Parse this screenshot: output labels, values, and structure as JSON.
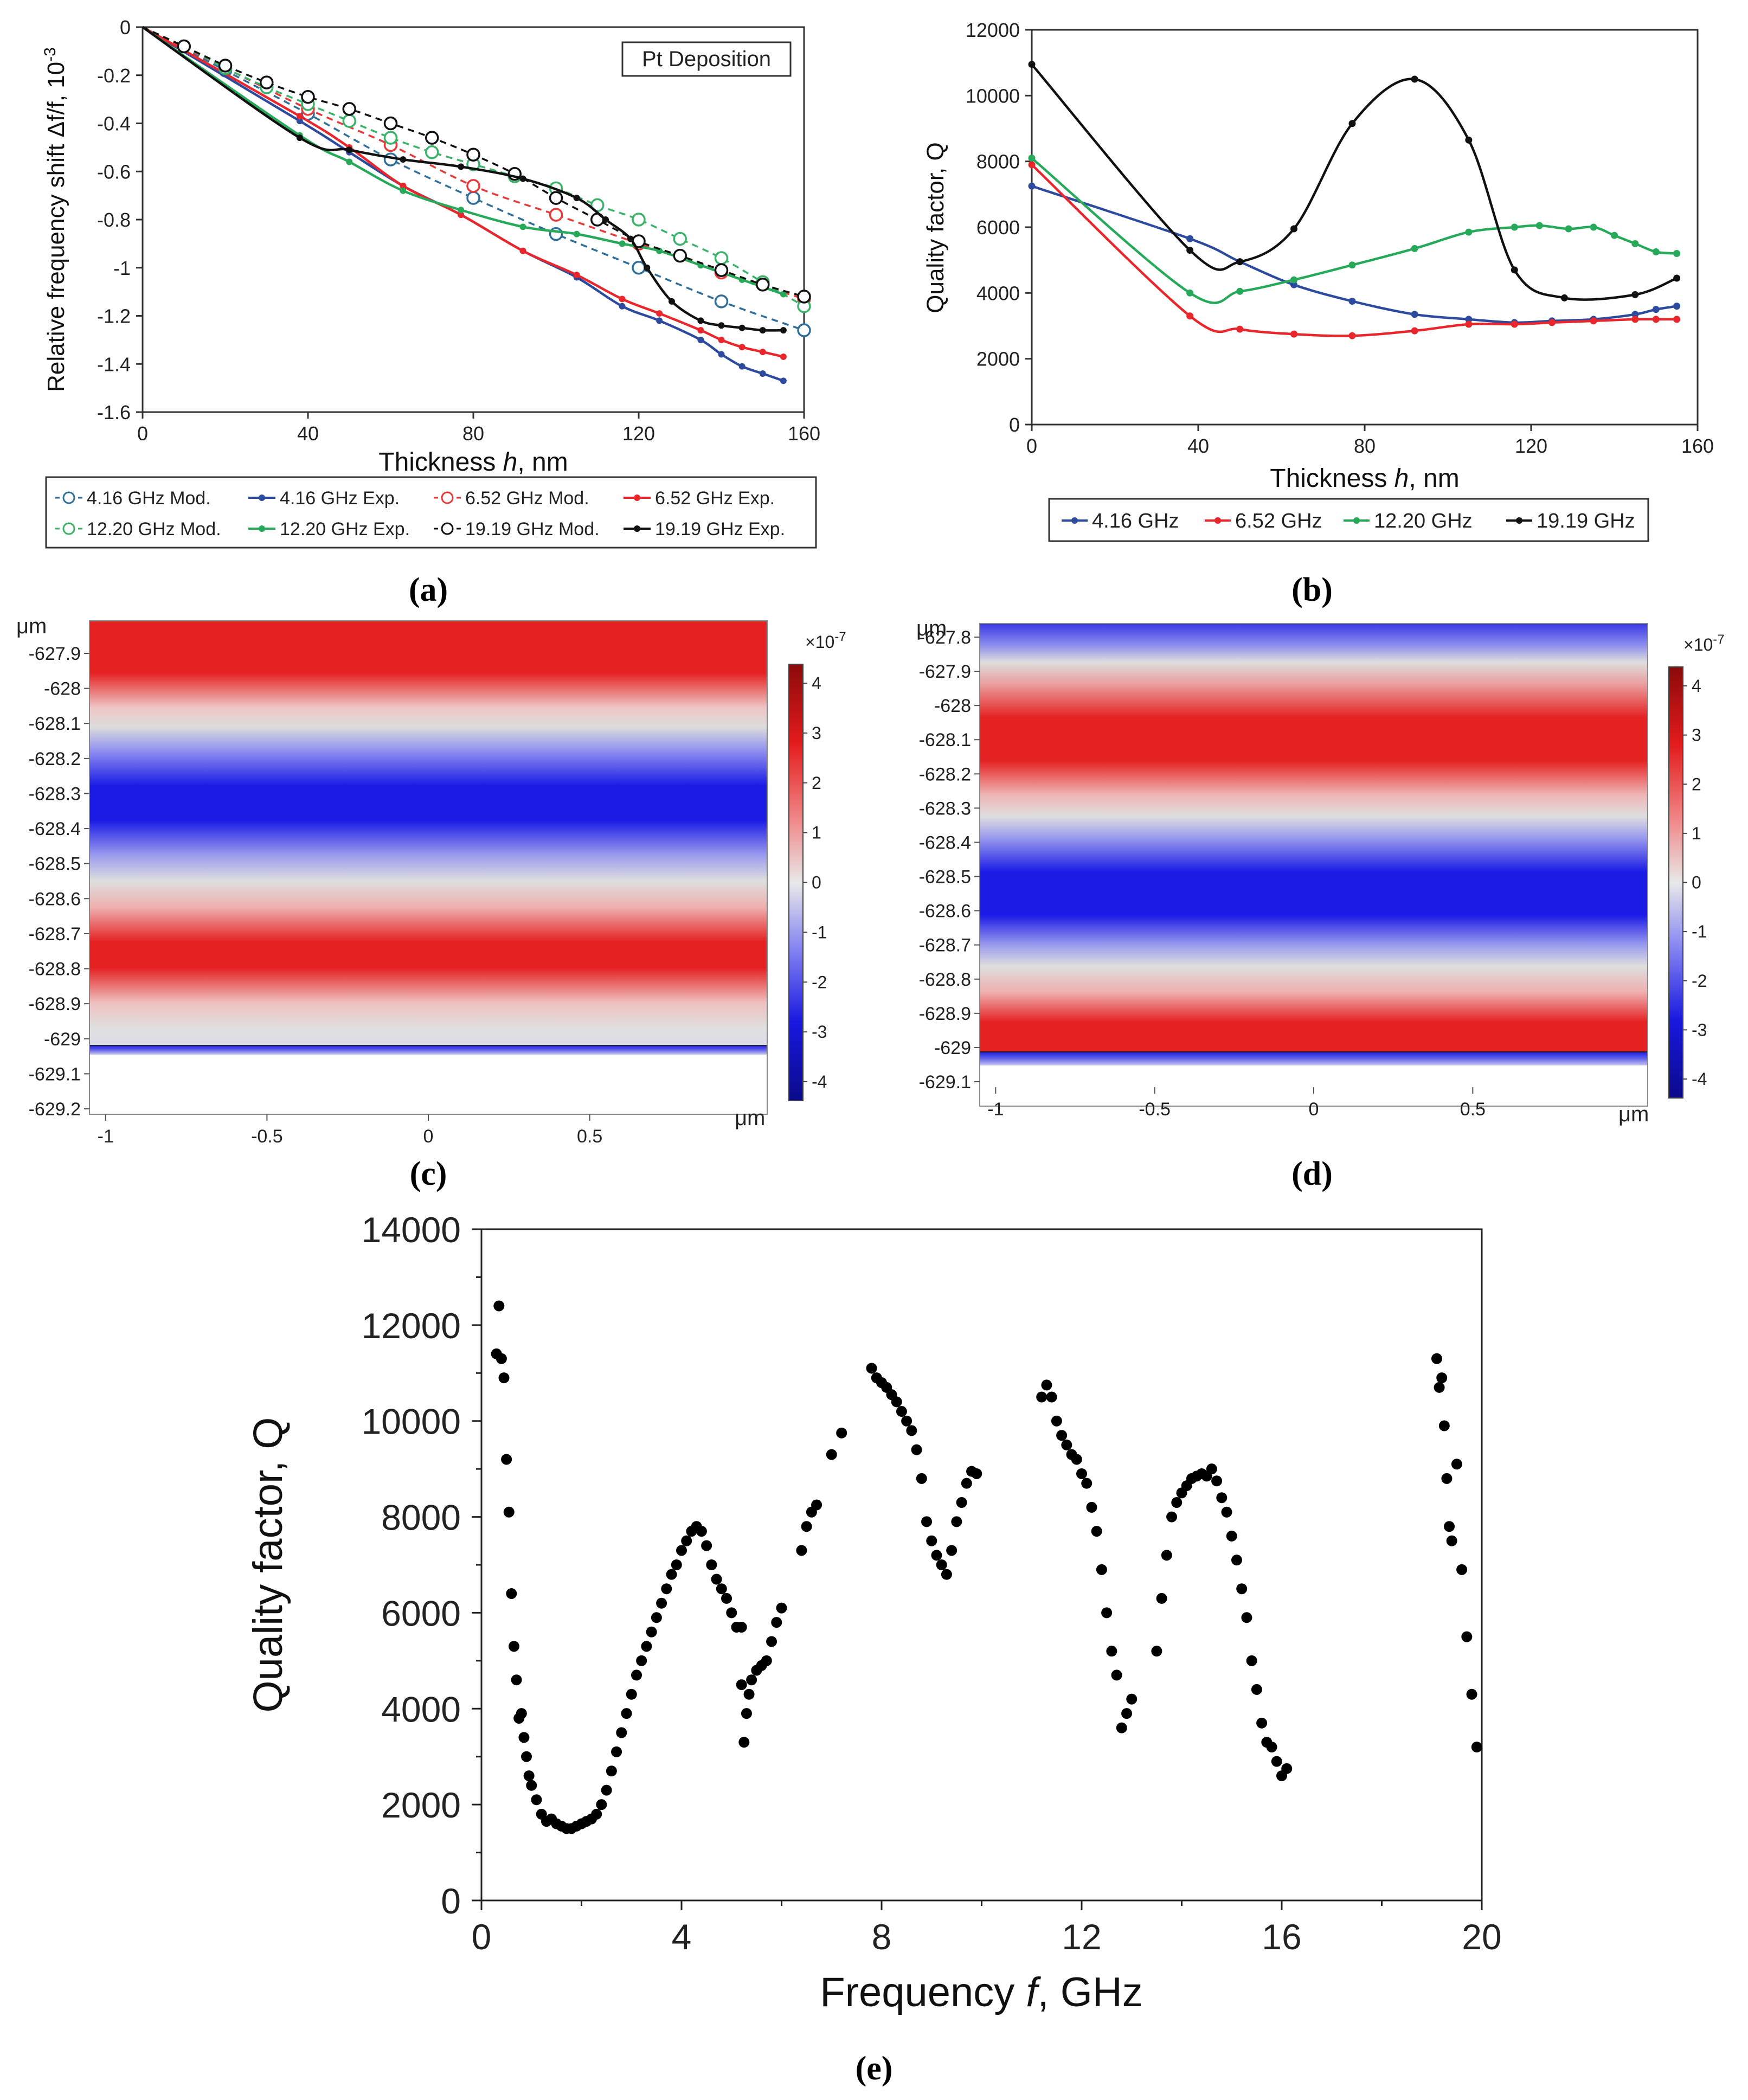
{
  "chart_data": [
    {
      "panel": "(a)",
      "type": "line",
      "title": "Pt Deposition",
      "xlabel": "Thickness",
      "xlabel_var": "h",
      "xlabel_unit": ", nm",
      "ylabel": "Relative frequency shift Δf/f, 10",
      "ylabel_exp": "-3",
      "xlim": [
        0,
        160
      ],
      "ylim": [
        -1.6,
        0
      ],
      "xticks": [
        "0",
        "40",
        "80",
        "120",
        "160"
      ],
      "yticks": [
        "0",
        "-0.2",
        "-0.4",
        "-0.6",
        "-0.8",
        "-1",
        "-1.2",
        "-1.4",
        "-1.6"
      ],
      "legend": [
        {
          "name": "4.16 GHz Mod.",
          "color": "#2f6f9a",
          "style": "mod"
        },
        {
          "name": "4.16 GHz Exp.",
          "color": "#2c4b9e",
          "style": "exp"
        },
        {
          "name": "6.52 GHz Mod.",
          "color": "#e8393a",
          "style": "mod"
        },
        {
          "name": "6.52 GHz Exp.",
          "color": "#e8262b",
          "style": "exp"
        },
        {
          "name": "12.20 GHz Mod.",
          "color": "#3bb36a",
          "style": "mod"
        },
        {
          "name": "12.20 GHz Exp.",
          "color": "#27a95a",
          "style": "exp"
        },
        {
          "name": "19.19 GHz Mod.",
          "color": "#111111",
          "style": "mod"
        },
        {
          "name": "19.19 GHz Exp.",
          "color": "#111111",
          "style": "exp"
        }
      ],
      "series": [
        {
          "name": "4.16 GHz Mod.",
          "color": "#2f6f9a",
          "style": "mod",
          "x": [
            0,
            20,
            40,
            60,
            80,
            100,
            120,
            140,
            160
          ],
          "y": [
            0,
            -0.18,
            -0.36,
            -0.55,
            -0.71,
            -0.86,
            -1.0,
            -1.14,
            -1.26
          ]
        },
        {
          "name": "4.16 GHz Exp.",
          "color": "#2c4b9e",
          "style": "exp",
          "x": [
            0,
            38,
            50,
            63,
            77,
            92,
            105,
            116,
            125,
            135,
            140,
            145,
            150,
            155
          ],
          "y": [
            0,
            -0.39,
            -0.52,
            -0.66,
            -0.78,
            -0.93,
            -1.04,
            -1.16,
            -1.22,
            -1.3,
            -1.36,
            -1.41,
            -1.44,
            -1.47
          ]
        },
        {
          "name": "6.52 GHz Mod.",
          "color": "#e8393a",
          "style": "mod",
          "x": [
            0,
            20,
            40,
            60,
            80,
            100,
            120,
            140,
            160
          ],
          "y": [
            0,
            -0.17,
            -0.34,
            -0.49,
            -0.66,
            -0.78,
            -0.9,
            -1.02,
            -1.13
          ]
        },
        {
          "name": "6.52 GHz Exp.",
          "color": "#e8262b",
          "style": "exp",
          "x": [
            0,
            38,
            50,
            63,
            77,
            92,
            105,
            116,
            125,
            135,
            140,
            145,
            150,
            155
          ],
          "y": [
            0,
            -0.37,
            -0.5,
            -0.66,
            -0.78,
            -0.93,
            -1.03,
            -1.13,
            -1.19,
            -1.26,
            -1.3,
            -1.33,
            -1.35,
            -1.37
          ]
        },
        {
          "name": "12.20 GHz Mod.",
          "color": "#3bb36a",
          "style": "mod",
          "x": [
            0,
            10,
            20,
            30,
            40,
            50,
            60,
            70,
            80,
            90,
            100,
            110,
            120,
            130,
            140,
            150,
            160
          ],
          "y": [
            0,
            -0.08,
            -0.17,
            -0.25,
            -0.32,
            -0.39,
            -0.46,
            -0.52,
            -0.57,
            -0.62,
            -0.67,
            -0.74,
            -0.8,
            -0.88,
            -0.96,
            -1.06,
            -1.16
          ]
        },
        {
          "name": "12.20 GHz Exp.",
          "color": "#27a95a",
          "style": "exp",
          "x": [
            0,
            38,
            50,
            63,
            77,
            92,
            105,
            116,
            125,
            135,
            140,
            145,
            150,
            155
          ],
          "y": [
            0,
            -0.45,
            -0.56,
            -0.68,
            -0.76,
            -0.83,
            -0.86,
            -0.9,
            -0.93,
            -0.99,
            -1.02,
            -1.05,
            -1.08,
            -1.11
          ]
        },
        {
          "name": "19.19 GHz Mod.",
          "color": "#111111",
          "style": "mod",
          "x": [
            0,
            10,
            20,
            30,
            40,
            50,
            60,
            70,
            80,
            90,
            100,
            110,
            120,
            130,
            140,
            150,
            160
          ],
          "y": [
            0,
            -0.08,
            -0.16,
            -0.23,
            -0.29,
            -0.34,
            -0.4,
            -0.46,
            -0.53,
            -0.61,
            -0.71,
            -0.8,
            -0.89,
            -0.95,
            -1.01,
            -1.07,
            -1.12
          ]
        },
        {
          "name": "19.19 GHz Exp.",
          "color": "#111111",
          "style": "exp",
          "x": [
            0,
            38,
            50,
            63,
            77,
            92,
            105,
            112,
            118,
            122,
            128,
            135,
            140,
            145,
            150,
            155
          ],
          "y": [
            0,
            -0.46,
            -0.51,
            -0.55,
            -0.58,
            -0.63,
            -0.71,
            -0.8,
            -0.88,
            -1.0,
            -1.14,
            -1.22,
            -1.24,
            -1.25,
            -1.26,
            -1.26
          ]
        }
      ]
    },
    {
      "panel": "(b)",
      "type": "line",
      "xlabel": "Thickness",
      "xlabel_var": "h",
      "xlabel_unit": ", nm",
      "ylabel": "Quality factor,  Q",
      "xlim": [
        0,
        160
      ],
      "ylim": [
        0,
        12000
      ],
      "xticks": [
        "0",
        "40",
        "80",
        "120",
        "160"
      ],
      "yticks": [
        "0",
        "2000",
        "4000",
        "6000",
        "8000",
        "10000",
        "12000"
      ],
      "series": [
        {
          "name": "4.16 GHz",
          "color": "#2c4b9e",
          "x": [
            0,
            38,
            50,
            63,
            77,
            92,
            105,
            116,
            125,
            135,
            145,
            150,
            155
          ],
          "y": [
            7250,
            5650,
            4950,
            4250,
            3750,
            3350,
            3200,
            3100,
            3150,
            3200,
            3350,
            3500,
            3600
          ]
        },
        {
          "name": "6.52 GHz",
          "color": "#e8262b",
          "x": [
            0,
            38,
            50,
            63,
            77,
            92,
            105,
            116,
            125,
            135,
            145,
            150,
            155
          ],
          "y": [
            7900,
            3300,
            2900,
            2750,
            2700,
            2850,
            3050,
            3050,
            3100,
            3150,
            3200,
            3200,
            3200
          ]
        },
        {
          "name": "12.20 GHz",
          "color": "#27a95a",
          "x": [
            0,
            38,
            50,
            63,
            77,
            92,
            105,
            116,
            122,
            129,
            135,
            140,
            145,
            150,
            155
          ],
          "y": [
            8100,
            4000,
            4050,
            4400,
            4850,
            5350,
            5850,
            6000,
            6050,
            5950,
            6000,
            5750,
            5500,
            5250,
            5200
          ]
        },
        {
          "name": "19.19 GHz",
          "color": "#111111",
          "x": [
            0,
            38,
            50,
            63,
            77,
            92,
            105,
            116,
            128,
            145,
            155
          ],
          "y": [
            10950,
            5300,
            4950,
            5950,
            9150,
            10500,
            8650,
            4700,
            3850,
            3950,
            4450
          ]
        }
      ]
    },
    {
      "panel": "(c)",
      "type": "heatmap",
      "ylabel": "μm",
      "xlabel": "μm",
      "xticks": [
        "-1",
        "-0.5",
        "0",
        "0.5"
      ],
      "yticks": [
        "-627.9",
        "-628",
        "-628.1",
        "-628.2",
        "-628.3",
        "-628.4",
        "-628.5",
        "-628.6",
        "-628.7",
        "-628.8",
        "-628.9",
        "-629",
        "-629.1",
        "-629.2"
      ],
      "colorbar_label": "×10",
      "colorbar_exp": "-7",
      "colorbar_ticks": [
        "4",
        "3",
        "2",
        "1",
        "0",
        "-1",
        "-2",
        "-3",
        "-4"
      ]
    },
    {
      "panel": "(d)",
      "type": "heatmap",
      "ylabel": "μm",
      "xlabel": "μm",
      "xticks": [
        "-1",
        "-0.5",
        "0",
        "0.5"
      ],
      "yticks": [
        "-627.8",
        "-627.9",
        "-628",
        "-628.1",
        "-628.2",
        "-628.3",
        "-628.4",
        "-628.5",
        "-628.6",
        "-628.7",
        "-628.8",
        "-628.9",
        "-629",
        "-629.1"
      ],
      "colorbar_label": "×10",
      "colorbar_exp": "-7",
      "colorbar_ticks": [
        "4",
        "3",
        "2",
        "1",
        "0",
        "-1",
        "-2",
        "-3",
        "-4"
      ]
    },
    {
      "panel": "(e)",
      "type": "scatter",
      "xlabel": "Frequency",
      "xlabel_var": "f",
      "xlabel_unit": ", GHz",
      "ylabel": "Quality factor,  Q",
      "xlim": [
        0,
        20
      ],
      "ylim": [
        0,
        14000
      ],
      "xticks": [
        "0",
        "4",
        "8",
        "12",
        "16",
        "20"
      ],
      "yticks": [
        "0",
        "2000",
        "4000",
        "6000",
        "8000",
        "10000",
        "12000",
        "14000"
      ],
      "segments": [
        {
          "x": [
            0.3,
            0.35,
            0.4,
            0.45,
            0.5,
            0.55,
            0.6,
            0.65,
            0.7,
            0.75,
            0.8,
            0.85,
            0.9,
            0.95,
            1.0,
            1.1,
            1.2,
            1.3,
            1.4,
            1.5,
            1.6,
            1.7,
            1.8,
            1.9,
            2.0,
            2.1,
            2.2,
            2.3,
            2.4,
            2.5,
            2.6,
            2.7,
            2.8,
            2.9,
            3.0,
            3.1,
            3.2,
            3.3,
            3.4,
            3.5,
            3.6,
            3.7,
            3.8,
            3.9,
            4.0,
            4.1,
            4.2,
            4.3,
            4.4,
            4.5,
            4.6,
            4.7,
            4.8,
            4.9,
            5.0,
            5.1,
            5.2
          ],
          "y": [
            11400,
            12400,
            11300,
            10900,
            9200,
            8100,
            6400,
            5300,
            4600,
            3800,
            3900,
            3400,
            3000,
            2600,
            2400,
            2100,
            1800,
            1650,
            1700,
            1600,
            1550,
            1500,
            1500,
            1550,
            1600,
            1650,
            1700,
            1800,
            2000,
            2300,
            2700,
            3100,
            3500,
            3900,
            4300,
            4700,
            5000,
            5300,
            5600,
            5900,
            6200,
            6500,
            6800,
            7000,
            7300,
            7500,
            7700,
            7800,
            7700,
            7400,
            7000,
            6700,
            6500,
            6300,
            6000,
            5700,
            5700
          ]
        },
        {
          "x": [
            5.2,
            5.25,
            5.3,
            5.35,
            5.4,
            5.5,
            5.6,
            5.7,
            5.8,
            5.9,
            6.0
          ],
          "y": [
            4500,
            3300,
            3900,
            4300,
            4600,
            4800,
            4900,
            5000,
            5400,
            5800,
            6100
          ]
        },
        {
          "x": [
            6.4,
            6.5,
            6.6,
            6.7,
            7.0,
            7.2
          ],
          "y": [
            7300,
            7800,
            8100,
            8250,
            9300,
            9750
          ]
        },
        {
          "x": [
            7.8,
            7.9,
            8.0,
            8.1,
            8.2,
            8.3,
            8.4,
            8.5,
            8.6,
            8.7,
            8.8,
            8.9,
            9.0,
            9.1,
            9.2,
            9.3,
            9.4,
            9.5,
            9.6,
            9.7,
            9.8,
            9.9
          ],
          "y": [
            11100,
            10900,
            10800,
            10700,
            10550,
            10400,
            10200,
            10000,
            9800,
            9400,
            8800,
            7900,
            7500,
            7200,
            7000,
            6800,
            7300,
            7900,
            8300,
            8700,
            8950,
            8900
          ]
        },
        {
          "x": [
            11.2,
            11.3,
            11.4,
            11.5,
            11.6,
            11.7,
            11.8,
            11.9,
            12.0,
            12.1,
            12.2,
            12.3,
            12.4,
            12.5,
            12.6,
            12.7,
            12.8,
            12.9,
            13.0
          ],
          "y": [
            10500,
            10750,
            10500,
            10000,
            9700,
            9500,
            9300,
            9200,
            8900,
            8700,
            8200,
            7700,
            6900,
            6000,
            5200,
            4700,
            3600,
            3900,
            4200
          ]
        },
        {
          "x": [
            13.5,
            13.6,
            13.7,
            13.8,
            13.9,
            14.0,
            14.1,
            14.2,
            14.3,
            14.4,
            14.5,
            14.6,
            14.7,
            14.8,
            14.9,
            15.0,
            15.1,
            15.2,
            15.3,
            15.4,
            15.5,
            15.6,
            15.7,
            15.8,
            15.9,
            16.0,
            16.1
          ],
          "y": [
            5200,
            6300,
            7200,
            8000,
            8300,
            8500,
            8650,
            8800,
            8850,
            8900,
            8850,
            9000,
            8750,
            8400,
            8100,
            7600,
            7100,
            6500,
            5900,
            5000,
            4400,
            3700,
            3300,
            3200,
            2900,
            2600,
            2750
          ]
        },
        {
          "x": [
            19.1,
            19.15,
            19.2,
            19.25,
            19.3,
            19.35,
            19.4,
            19.5,
            19.6,
            19.7,
            19.8,
            19.9
          ],
          "y": [
            11300,
            10700,
            10900,
            9900,
            8800,
            7800,
            7500,
            9100,
            6900,
            5500,
            4300,
            3200
          ]
        }
      ]
    }
  ],
  "panel_labels": [
    "(a)",
    "(b)",
    "(c)",
    "(d)",
    "(e)"
  ]
}
